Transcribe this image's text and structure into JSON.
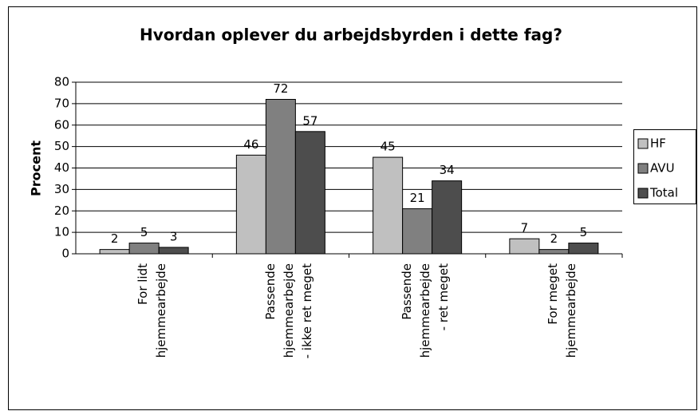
{
  "chart_data": {
    "type": "bar",
    "title": "Hvordan oplever du arbejdsbyrden i dette fag?",
    "y_label": "Procent",
    "categories": [
      "For lidt\nhjemmearbejde",
      "Passende\nhjemmearbejde\n- ikke ret meget",
      "Passende\nhjemmearbejde\n- ret meget",
      "For meget\nhjemmearbejde"
    ],
    "series": [
      {
        "name": "HF",
        "color": "#c0c0c0",
        "values": [
          2,
          46,
          45,
          7
        ]
      },
      {
        "name": "AVU",
        "color": "#808080",
        "values": [
          5,
          72,
          21,
          2
        ]
      },
      {
        "name": "Total",
        "color": "#4d4d4d",
        "values": [
          3,
          57,
          34,
          5
        ]
      }
    ],
    "ylim": [
      0,
      80
    ],
    "yticks": [
      0,
      10,
      20,
      30,
      40,
      50,
      60,
      70,
      80
    ],
    "grid": true,
    "legend": "right"
  }
}
